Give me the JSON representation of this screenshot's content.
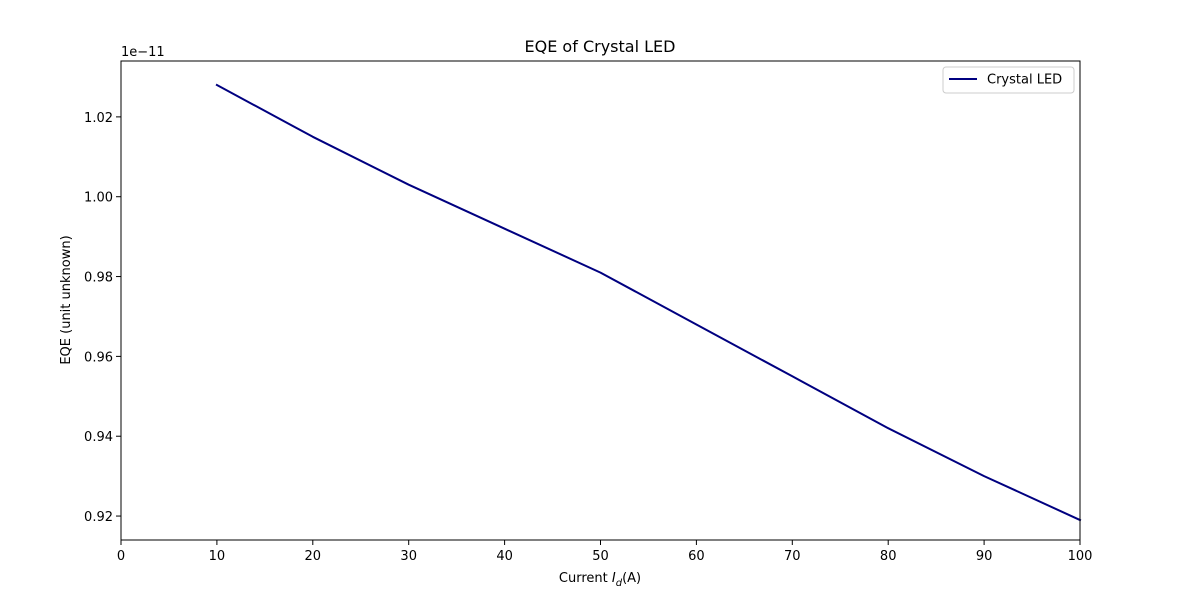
{
  "chart_data": {
    "type": "line",
    "title": "EQE of Crystal LED",
    "xlabel_prefix": "Current ",
    "xlabel_var": "I",
    "xlabel_sub": "d",
    "xlabel_suffix": "(A)",
    "ylabel": "EQE (unit unknown)",
    "y_offset_label": "1e−11",
    "xlim": [
      0,
      100
    ],
    "ylim": [
      0.914,
      1.034
    ],
    "xticks": [
      0,
      10,
      20,
      30,
      40,
      50,
      60,
      70,
      80,
      90,
      100
    ],
    "yticks": [
      0.92,
      0.94,
      0.96,
      0.98,
      1.0,
      1.02
    ],
    "ytick_labels": [
      "0.92",
      "0.94",
      "0.96",
      "0.98",
      "1.00",
      "1.02"
    ],
    "grid": false,
    "legend_position": "top-right",
    "series": [
      {
        "name": "Crystal LED",
        "color": "#000080",
        "x": [
          10,
          20,
          30,
          40,
          50,
          60,
          70,
          80,
          90,
          100
        ],
        "y": [
          1.028,
          1.015,
          1.003,
          0.992,
          0.981,
          0.968,
          0.955,
          0.942,
          0.93,
          0.919
        ]
      }
    ]
  }
}
